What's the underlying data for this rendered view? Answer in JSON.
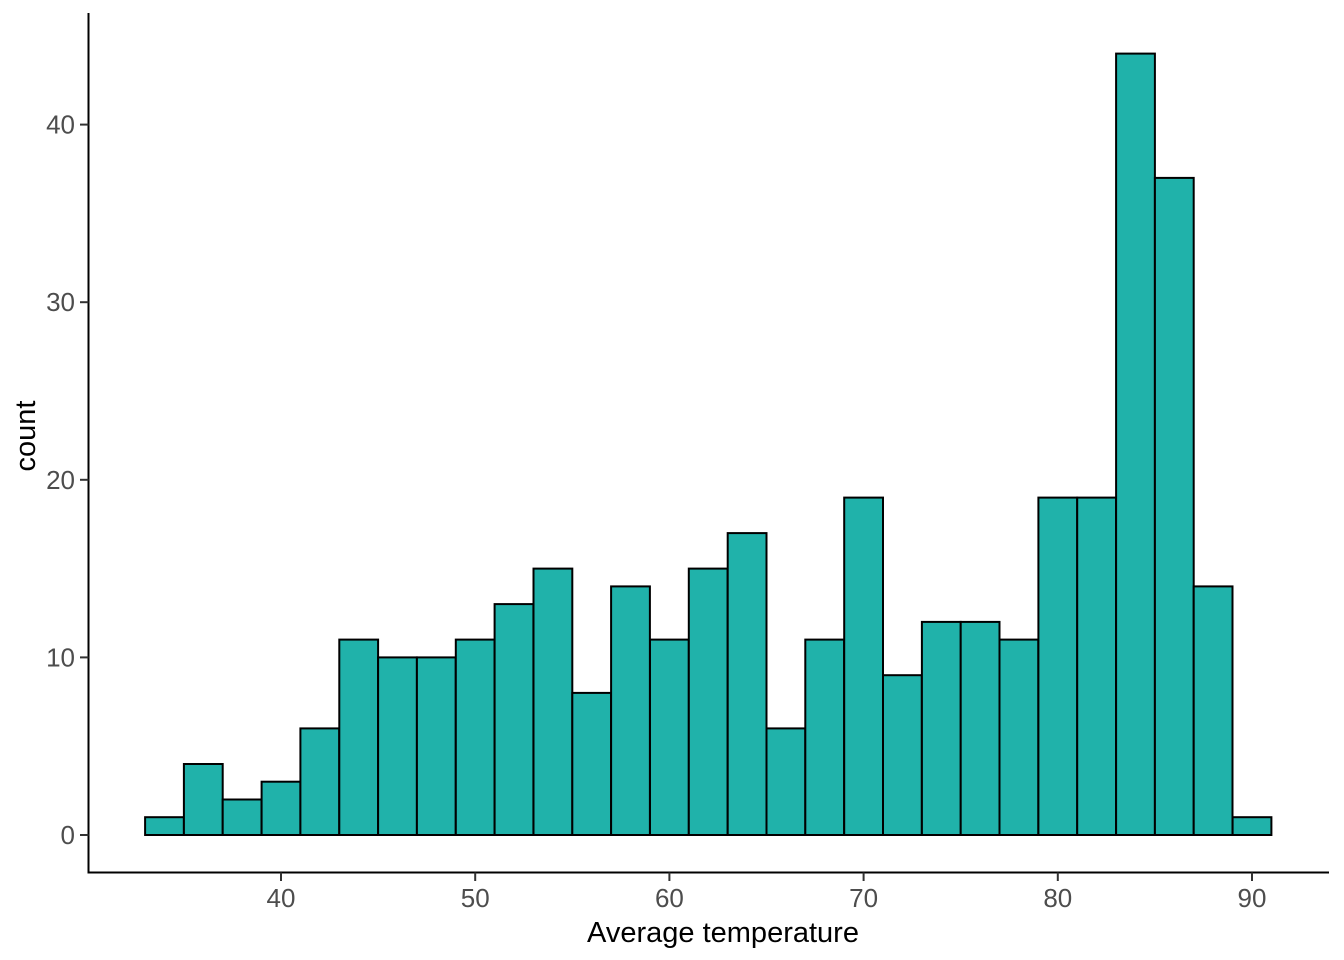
{
  "chart_data": {
    "type": "bar",
    "subtype": "histogram",
    "title": "",
    "xlabel": "Average temperature",
    "ylabel": "count",
    "bin_width": 2,
    "bin_start": 33,
    "bin_edges": [
      33,
      35,
      37,
      39,
      41,
      43,
      45,
      47,
      49,
      51,
      53,
      55,
      57,
      59,
      61,
      63,
      65,
      67,
      69,
      71,
      73,
      75,
      77,
      79,
      81,
      83,
      85,
      87,
      89,
      91
    ],
    "counts": [
      1,
      4,
      2,
      3,
      6,
      11,
      10,
      10,
      11,
      13,
      15,
      8,
      14,
      11,
      15,
      17,
      6,
      11,
      19,
      9,
      12,
      12,
      11,
      19,
      19,
      44,
      37,
      14,
      1
    ],
    "x_ticks": [
      40,
      50,
      60,
      70,
      80,
      90
    ],
    "y_ticks": [
      0,
      10,
      20,
      30,
      40
    ],
    "xlim": [
      30.1,
      93.9
    ],
    "ylim": [
      -2.2,
      46.2
    ],
    "grid": false,
    "legend": false,
    "colors": {
      "bar_fill": "#20B2AA",
      "bar_stroke": "#000000",
      "axis_line": "#000000",
      "tick_mark": "#333333",
      "tick_label": "#4D4D4D",
      "axis_title": "#000000",
      "background": "#FFFFFF"
    }
  }
}
